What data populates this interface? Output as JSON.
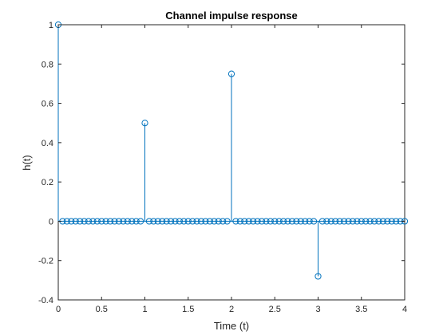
{
  "chart_data": {
    "type": "stem",
    "title": "Channel impulse response",
    "xlabel": "Time (t)",
    "ylabel": "h(t)",
    "xlim": [
      0,
      4
    ],
    "ylim": [
      -0.4,
      1
    ],
    "xticks": [
      "0",
      "0.5",
      "1",
      "1.5",
      "2",
      "2.5",
      "3",
      "3.5",
      "4"
    ],
    "yticks": [
      "-0.4",
      "-0.2",
      "0",
      "0.2",
      "0.4",
      "0.6",
      "0.8",
      "1"
    ],
    "sample_spacing": 0.05,
    "nonzero_samples": [
      {
        "x": 0,
        "y": 1
      },
      {
        "x": 1,
        "y": 0.5
      },
      {
        "x": 2,
        "y": 0.75
      },
      {
        "x": 3,
        "y": -0.28
      }
    ],
    "grid": false,
    "series_color": "#0072bd"
  }
}
